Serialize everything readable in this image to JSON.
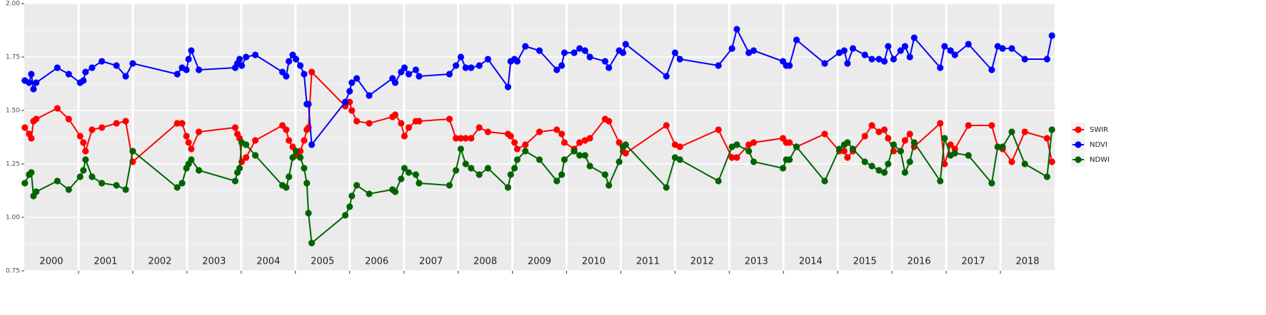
{
  "chart_data": {
    "type": "line",
    "x": [
      2000.01,
      2000.09,
      2000.13,
      2000.17,
      2000.22,
      2000.61,
      2000.82,
      2001.03,
      2001.09,
      2001.13,
      2001.25,
      2001.43,
      2001.7,
      2001.87,
      2002.0,
      2002.82,
      2002.91,
      2002.99,
      2003.03,
      2003.08,
      2003.22,
      2003.89,
      2003.93,
      2003.97,
      2004.01,
      2004.09,
      2004.26,
      2004.76,
      2004.83,
      2004.88,
      2004.95,
      2005.01,
      2005.09,
      2005.16,
      2005.21,
      2005.24,
      2005.3,
      2005.92,
      2006.0,
      2006.04,
      2006.13,
      2006.36,
      2006.79,
      2006.84,
      2006.95,
      2007.01,
      2007.09,
      2007.22,
      2007.28,
      2007.84,
      2007.96,
      2008.05,
      2008.14,
      2008.24,
      2008.39,
      2008.55,
      2008.92,
      2008.97,
      2009.04,
      2009.09,
      2009.24,
      2009.5,
      2009.82,
      2009.91,
      2009.96,
      2010.14,
      2010.24,
      2010.34,
      2010.43,
      2010.71,
      2010.78,
      2010.97,
      2011.04,
      2011.09,
      2011.84,
      2012.0,
      2012.09,
      2012.8,
      2013.05,
      2013.14,
      2013.36,
      2013.45,
      2013.99,
      2014.05,
      2014.11,
      2014.24,
      2014.76,
      2015.03,
      2015.12,
      2015.18,
      2015.28,
      2015.5,
      2015.63,
      2015.76,
      2015.86,
      2015.93,
      2016.03,
      2016.16,
      2016.24,
      2016.33,
      2016.41,
      2016.89,
      2016.97,
      2017.08,
      2017.16,
      2017.41,
      2017.84,
      2017.95,
      2018.04,
      2018.21,
      2018.45,
      2018.86,
      2018.95
    ],
    "series": [
      {
        "name": "SWIR",
        "color": "#ff0000",
        "values": [
          1.42,
          1.39,
          1.37,
          1.45,
          1.46,
          1.51,
          1.46,
          1.38,
          1.35,
          1.31,
          1.41,
          1.42,
          1.44,
          1.45,
          1.26,
          1.44,
          1.44,
          1.38,
          1.35,
          1.32,
          1.4,
          1.42,
          1.39,
          1.37,
          1.26,
          1.28,
          1.36,
          1.43,
          1.41,
          1.36,
          1.33,
          1.29,
          1.31,
          1.36,
          1.41,
          1.42,
          1.68,
          1.52,
          1.54,
          1.5,
          1.45,
          1.44,
          1.47,
          1.48,
          1.44,
          1.38,
          1.42,
          1.45,
          1.45,
          1.46,
          1.37,
          1.37,
          1.37,
          1.37,
          1.42,
          1.4,
          1.39,
          1.38,
          1.35,
          1.32,
          1.34,
          1.4,
          1.41,
          1.39,
          1.35,
          1.32,
          1.35,
          1.36,
          1.37,
          1.46,
          1.45,
          1.35,
          1.31,
          1.3,
          1.43,
          1.34,
          1.33,
          1.41,
          1.28,
          1.28,
          1.34,
          1.35,
          1.37,
          1.35,
          1.35,
          1.33,
          1.39,
          1.31,
          1.31,
          1.28,
          1.31,
          1.38,
          1.43,
          1.4,
          1.41,
          1.37,
          1.31,
          1.31,
          1.36,
          1.39,
          1.33,
          1.44,
          1.25,
          1.34,
          1.32,
          1.43,
          1.43,
          1.33,
          1.32,
          1.26,
          1.4,
          1.37,
          1.26
        ]
      },
      {
        "name": "NDVI",
        "color": "#0000ff",
        "values": [
          1.64,
          1.63,
          1.67,
          1.6,
          1.63,
          1.7,
          1.67,
          1.63,
          1.64,
          1.68,
          1.7,
          1.73,
          1.71,
          1.66,
          1.72,
          1.67,
          1.7,
          1.69,
          1.74,
          1.78,
          1.69,
          1.7,
          1.72,
          1.74,
          1.71,
          1.75,
          1.76,
          1.68,
          1.66,
          1.73,
          1.76,
          1.74,
          1.71,
          1.67,
          1.53,
          1.53,
          1.34,
          1.54,
          1.59,
          1.63,
          1.65,
          1.57,
          1.65,
          1.63,
          1.68,
          1.7,
          1.67,
          1.69,
          1.66,
          1.67,
          1.71,
          1.75,
          1.7,
          1.7,
          1.71,
          1.74,
          1.61,
          1.73,
          1.74,
          1.73,
          1.8,
          1.78,
          1.69,
          1.71,
          1.77,
          1.77,
          1.79,
          1.78,
          1.75,
          1.73,
          1.7,
          1.78,
          1.77,
          1.81,
          1.66,
          1.77,
          1.74,
          1.71,
          1.79,
          1.88,
          1.77,
          1.78,
          1.73,
          1.71,
          1.71,
          1.83,
          1.72,
          1.77,
          1.78,
          1.72,
          1.79,
          1.76,
          1.74,
          1.74,
          1.73,
          1.8,
          1.74,
          1.78,
          1.8,
          1.75,
          1.84,
          1.7,
          1.8,
          1.78,
          1.76,
          1.81,
          1.69,
          1.8,
          1.79,
          1.79,
          1.74,
          1.74,
          1.85
        ]
      },
      {
        "name": "NDWI",
        "color": "#006400",
        "values": [
          1.16,
          1.2,
          1.21,
          1.1,
          1.12,
          1.17,
          1.13,
          1.19,
          1.22,
          1.27,
          1.19,
          1.16,
          1.15,
          1.13,
          1.31,
          1.14,
          1.16,
          1.23,
          1.25,
          1.27,
          1.22,
          1.17,
          1.21,
          1.23,
          1.35,
          1.34,
          1.29,
          1.15,
          1.14,
          1.19,
          1.28,
          1.31,
          1.28,
          1.23,
          1.16,
          1.02,
          0.88,
          1.01,
          1.05,
          1.1,
          1.15,
          1.11,
          1.13,
          1.12,
          1.18,
          1.23,
          1.21,
          1.2,
          1.16,
          1.15,
          1.22,
          1.32,
          1.25,
          1.23,
          1.2,
          1.23,
          1.14,
          1.2,
          1.23,
          1.27,
          1.31,
          1.27,
          1.17,
          1.2,
          1.27,
          1.31,
          1.29,
          1.29,
          1.24,
          1.2,
          1.15,
          1.26,
          1.33,
          1.34,
          1.14,
          1.28,
          1.27,
          1.17,
          1.33,
          1.34,
          1.31,
          1.26,
          1.23,
          1.27,
          1.27,
          1.33,
          1.17,
          1.32,
          1.34,
          1.35,
          1.32,
          1.26,
          1.24,
          1.22,
          1.21,
          1.25,
          1.34,
          1.31,
          1.21,
          1.26,
          1.35,
          1.17,
          1.37,
          1.29,
          1.3,
          1.29,
          1.16,
          1.33,
          1.33,
          1.4,
          1.25,
          1.19,
          1.41
        ]
      }
    ],
    "xlim": [
      2000,
      2019
    ],
    "xticks": [
      {
        "value": 2000.5,
        "label": "2000"
      },
      {
        "value": 2001.5,
        "label": "2001"
      },
      {
        "value": 2002.5,
        "label": "2002"
      },
      {
        "value": 2003.5,
        "label": "2003"
      },
      {
        "value": 2004.5,
        "label": "2004"
      },
      {
        "value": 2005.5,
        "label": "2005"
      },
      {
        "value": 2006.5,
        "label": "2006"
      },
      {
        "value": 2007.5,
        "label": "2007"
      },
      {
        "value": 2008.5,
        "label": "2008"
      },
      {
        "value": 2009.5,
        "label": "2009"
      },
      {
        "value": 2010.5,
        "label": "2010"
      },
      {
        "value": 2011.5,
        "label": "2011"
      },
      {
        "value": 2012.5,
        "label": "2012"
      },
      {
        "value": 2013.5,
        "label": "2013"
      },
      {
        "value": 2014.5,
        "label": "2014"
      },
      {
        "value": 2015.5,
        "label": "2015"
      },
      {
        "value": 2016.5,
        "label": "2016"
      },
      {
        "value": 2017.5,
        "label": "2017"
      },
      {
        "value": 2018.5,
        "label": "2018"
      }
    ],
    "ylim": [
      0.75,
      2.0
    ],
    "yticks": [
      {
        "value": 0.75,
        "label": "0.75"
      },
      {
        "value": 1.0,
        "label": "1.00"
      },
      {
        "value": 1.25,
        "label": "1.25"
      },
      {
        "value": 1.5,
        "label": "1.50"
      },
      {
        "value": 1.75,
        "label": "1.75"
      },
      {
        "value": 2.0,
        "label": "2.00"
      }
    ],
    "grid": true,
    "legend": "right"
  }
}
